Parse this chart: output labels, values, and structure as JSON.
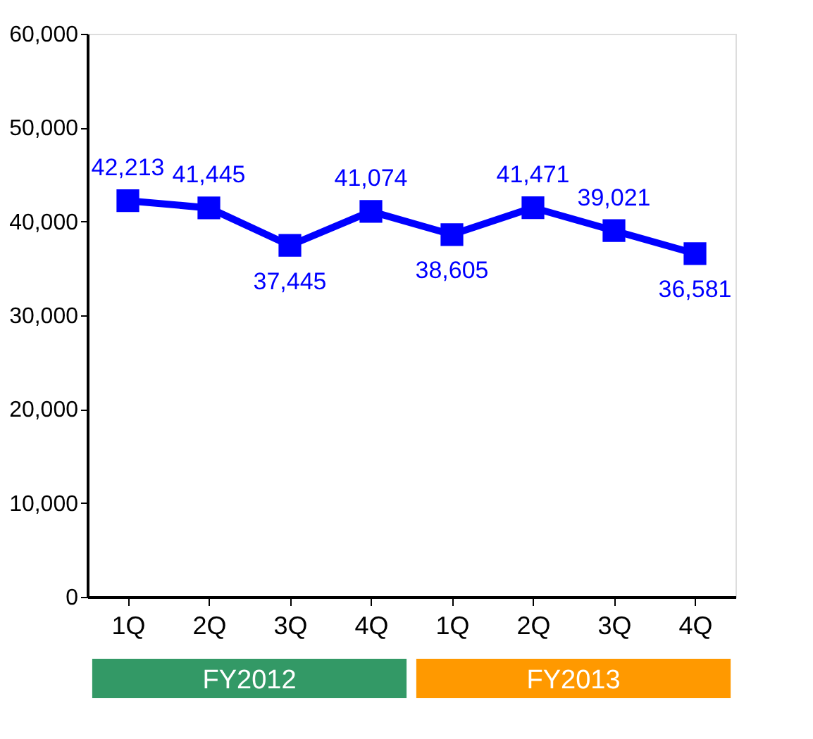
{
  "chart_data": {
    "type": "line",
    "categories": [
      "1Q",
      "2Q",
      "3Q",
      "4Q",
      "1Q",
      "2Q",
      "3Q",
      "4Q"
    ],
    "series": [
      {
        "color": "#0000ff",
        "values": [
          42213,
          41445,
          37445,
          41074,
          38605,
          41471,
          39021,
          36581
        ],
        "value_labels": [
          "42,213",
          "41,445",
          "37,445",
          "41,074",
          "38,605",
          "41,471",
          "39,021",
          "36,581"
        ]
      }
    ],
    "ylim": [
      0,
      60000
    ],
    "yticks": [
      {
        "value": 0,
        "label": "0"
      },
      {
        "value": 10000,
        "label": "10,000"
      },
      {
        "value": 20000,
        "label": "20,000"
      },
      {
        "value": 30000,
        "label": "30,000"
      },
      {
        "value": 40000,
        "label": "40,000"
      },
      {
        "value": 50000,
        "label": "50,000"
      },
      {
        "value": 60000,
        "label": "60,000"
      }
    ],
    "marker": "square",
    "line_style": "solid",
    "grid": false,
    "annotations": [
      "FY2012",
      "FY2013"
    ]
  }
}
